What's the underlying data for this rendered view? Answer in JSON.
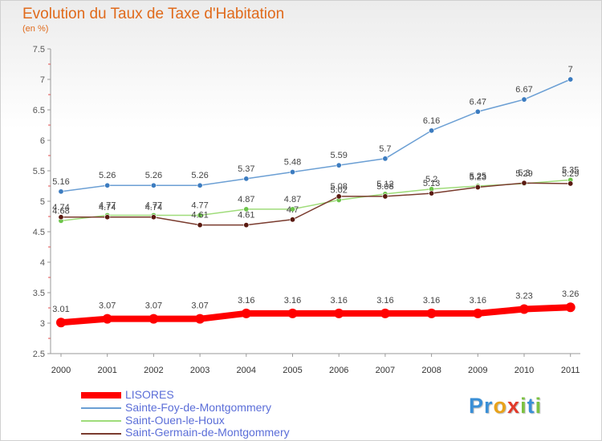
{
  "title": "Evolution du Taux de Taxe d'Habitation",
  "subtitle": "(en %)",
  "brand": {
    "letters": [
      {
        "ch": "P",
        "color": "#3a8fd6"
      },
      {
        "ch": "r",
        "color": "#3a8fd6"
      },
      {
        "ch": "o",
        "color": "#e8a21a"
      },
      {
        "ch": "x",
        "color": "#e23a2a"
      },
      {
        "ch": "i",
        "color": "#7cc242"
      },
      {
        "ch": "t",
        "color": "#3a8fd6"
      },
      {
        "ch": "i",
        "color": "#7cc242"
      }
    ]
  },
  "chart_data": {
    "type": "line",
    "x": [
      "2000",
      "2001",
      "2002",
      "2003",
      "2004",
      "2005",
      "2006",
      "2007",
      "2008",
      "2009",
      "2010",
      "2011"
    ],
    "ylim": [
      2.5,
      7.5
    ],
    "yticks": [
      "2.5",
      "3",
      "3.5",
      "4",
      "4.5",
      "5",
      "5.5",
      "6",
      "6.5",
      "7",
      "7.5"
    ],
    "grid": false,
    "legend_position": "bottom-left",
    "series": [
      {
        "name": "LISORES",
        "color": "#ff0000",
        "marker": "#ff0000",
        "width": 8,
        "values": [
          3.01,
          3.07,
          3.07,
          3.07,
          3.16,
          3.16,
          3.16,
          3.16,
          3.16,
          3.16,
          3.23,
          3.26
        ],
        "labels": [
          "3.01",
          "3.07",
          "3.07",
          "3.07",
          "3.16",
          "3.16",
          "3.16",
          "3.16",
          "3.16",
          "3.16",
          "3.23",
          "3.26"
        ]
      },
      {
        "name": "Sainte-Foy-de-Montgommery",
        "color": "#6b9fd4",
        "marker": "#3c7cc0",
        "width": 1.5,
        "values": [
          5.16,
          5.26,
          5.26,
          5.26,
          5.37,
          5.48,
          5.59,
          5.7,
          6.16,
          6.47,
          6.67,
          7.0
        ],
        "labels": [
          "5.16",
          "5.26",
          "5.26",
          "5.26",
          "5.37",
          "5.48",
          "5.59",
          "5.7",
          "6.16",
          "6.47",
          "6.67",
          "7"
        ]
      },
      {
        "name": "Saint-Ouen-le-Houx",
        "color": "#9fdc7a",
        "marker": "#6cc44a",
        "width": 1.5,
        "values": [
          4.68,
          4.77,
          4.77,
          4.77,
          4.87,
          4.87,
          5.02,
          5.12,
          5.2,
          5.25,
          5.29,
          5.35
        ],
        "labels": [
          "4.68",
          "4.77",
          "4.77",
          "4.77",
          "4.87",
          "4.87",
          "5.02",
          "5.12",
          "5.2",
          "5.25",
          "5.29",
          "5.35"
        ]
      },
      {
        "name": "Saint-Germain-de-Montgommery",
        "color": "#7a3b2e",
        "marker": "#5a1a10",
        "width": 1.5,
        "values": [
          4.74,
          4.74,
          4.74,
          4.61,
          4.61,
          4.7,
          5.08,
          5.08,
          5.13,
          5.23,
          5.3,
          5.29
        ],
        "labels": [
          "4.74",
          "4.74",
          "4.74",
          "4.61",
          "4.61",
          "4.7",
          "5.08",
          "5.08",
          "5.13",
          "5.23",
          "5.3",
          "5.29"
        ]
      }
    ]
  }
}
